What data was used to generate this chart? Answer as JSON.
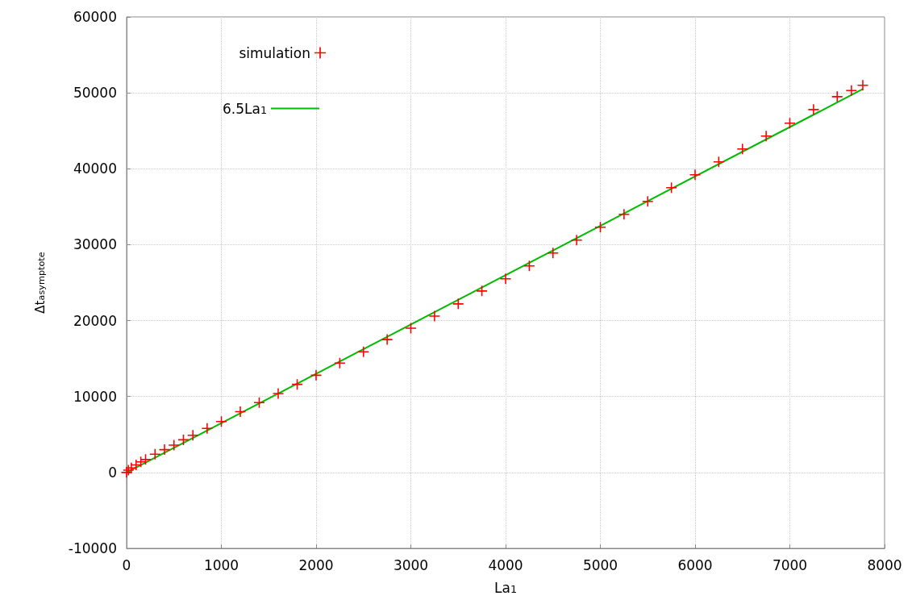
{
  "chart_data": {
    "type": "scatter",
    "xlabel": "La$_{1}$",
    "ylabel": "Δt$_{asymptote}$",
    "xlim": [
      0,
      8000
    ],
    "xticks": [
      0,
      1000,
      2000,
      3000,
      4000,
      5000,
      6000,
      7000,
      8000
    ],
    "ylim": [
      -10000,
      60000
    ],
    "yticks": [
      -10000,
      0,
      10000,
      20000,
      30000,
      40000,
      50000,
      60000
    ],
    "grid": true,
    "legend": "top left",
    "marker": "cross",
    "series": [
      {
        "name": "simulation",
        "color": "#ff0000",
        "x": [
          0,
          20,
          50,
          100,
          150,
          200,
          300,
          400,
          500,
          600,
          700,
          850,
          1000,
          1200,
          1400,
          1600,
          1800,
          2000,
          2250,
          2500,
          2750,
          3000,
          3250,
          3500,
          3750,
          4000,
          4250,
          4500,
          4750,
          5000,
          5250,
          5500,
          5750,
          6000,
          6250,
          6500,
          6750,
          7000,
          7250,
          7500,
          7650,
          7770
        ],
        "values": [
          0,
          300,
          600,
          1000,
          1400,
          1700,
          2400,
          3000,
          3600,
          4300,
          4900,
          5800,
          6700,
          8000,
          9200,
          10400,
          11600,
          12800,
          14400,
          15900,
          17500,
          19000,
          20600,
          22200,
          23900,
          25500,
          27200,
          28900,
          30600,
          32300,
          34000,
          35700,
          37500,
          39200,
          40900,
          42600,
          44300,
          46000,
          47800,
          49500,
          50300,
          51000
        ]
      },
      {
        "name": "6.5La$_{1}$",
        "type": "line",
        "color": "#00bb00",
        "marker": "none",
        "line_style": "solid",
        "x": [
          0,
          7770
        ],
        "values": [
          0,
          50500
        ]
      }
    ]
  }
}
